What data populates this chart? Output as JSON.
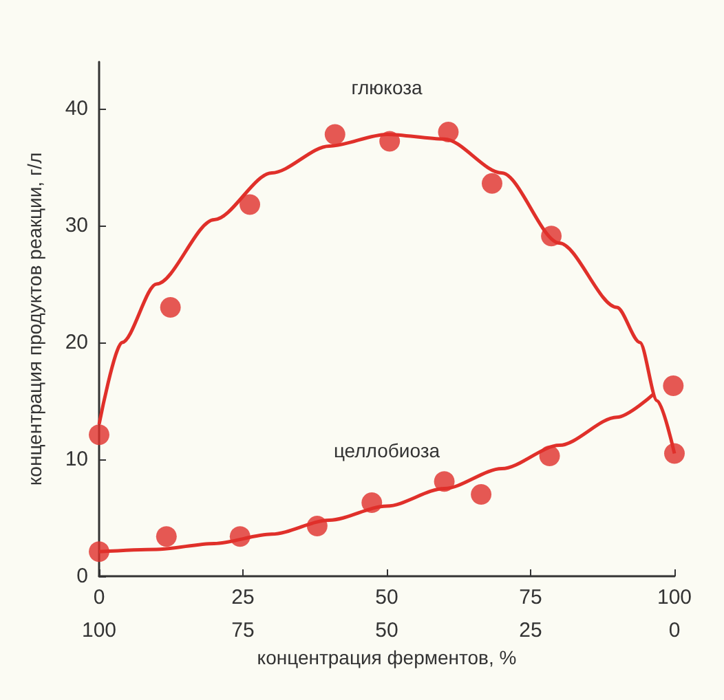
{
  "chart_data": {
    "type": "scatter",
    "xlabel": "концентрация ферментов, %",
    "ylabel": "концентрация продуктов реакции, г/л",
    "xlim": [
      0,
      100
    ],
    "xticks": [
      0,
      25,
      50,
      75,
      100
    ],
    "x2lim": [
      100,
      0
    ],
    "x2ticks": [
      100,
      75,
      50,
      25,
      0
    ],
    "ylim": [
      0,
      44
    ],
    "yticks": [
      0,
      10,
      20,
      30,
      40
    ],
    "grid": false,
    "legend": false,
    "series": [
      {
        "name": "глюкоза",
        "color": "#e0302a",
        "marker": "circle",
        "x": [
          0,
          12.4,
          26.2,
          41,
          50.5,
          60.7,
          68.3,
          78.6,
          100
        ],
        "values": [
          12.1,
          23.0,
          31.8,
          37.8,
          37.2,
          38.0,
          33.6,
          29.1,
          10.5
        ]
      },
      {
        "type": "line",
        "color": "#e0302a",
        "marker": "none",
        "x": [
          0,
          4,
          10,
          20,
          30,
          40,
          50,
          60,
          70,
          80,
          90,
          94,
          97,
          100
        ],
        "values": [
          13,
          20,
          25,
          30.5,
          34.5,
          36.8,
          37.8,
          37.4,
          34.5,
          28.5,
          23,
          20,
          15,
          10.5
        ]
      },
      {
        "name": "целлобиоза",
        "color": "#e0302a",
        "marker": "circle",
        "x": [
          0,
          11.7,
          24.5,
          37.9,
          47.4,
          60,
          66.4,
          78.3,
          99.8
        ],
        "values": [
          2.1,
          3.4,
          3.4,
          4.3,
          6.3,
          8.1,
          7.0,
          10.3,
          16.3
        ]
      },
      {
        "type": "line",
        "color": "#e0302a",
        "marker": "none",
        "x": [
          0,
          10,
          20,
          30,
          40,
          50,
          60,
          70,
          80,
          90,
          96.4
        ],
        "values": [
          2.1,
          2.3,
          2.8,
          3.6,
          4.8,
          6.0,
          7.5,
          9.2,
          11.2,
          13.6,
          15.6
        ]
      }
    ]
  }
}
